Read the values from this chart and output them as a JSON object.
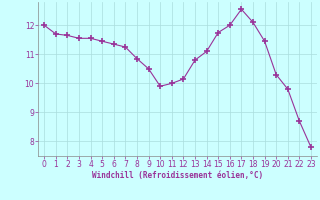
{
  "x": [
    0,
    1,
    2,
    3,
    4,
    5,
    6,
    7,
    8,
    9,
    10,
    11,
    12,
    13,
    14,
    15,
    16,
    17,
    18,
    19,
    20,
    21,
    22,
    23
  ],
  "y": [
    12.0,
    11.7,
    11.65,
    11.55,
    11.55,
    11.45,
    11.35,
    11.25,
    10.85,
    10.5,
    9.9,
    10.0,
    10.15,
    10.8,
    11.1,
    11.75,
    12.0,
    12.55,
    12.1,
    11.45,
    10.3,
    9.8,
    8.7,
    7.8
  ],
  "line_color": "#993399",
  "marker": "+",
  "marker_size": 4,
  "marker_lw": 1.2,
  "bg_color": "#ccffff",
  "grid_color": "#aadddd",
  "xlabel": "Windchill (Refroidissement éolien,°C)",
  "xlabel_color": "#993399",
  "tick_color": "#993399",
  "ylim": [
    7.5,
    12.8
  ],
  "xlim": [
    -0.5,
    23.5
  ],
  "yticks": [
    8,
    9,
    10,
    11,
    12
  ],
  "xticks": [
    0,
    1,
    2,
    3,
    4,
    5,
    6,
    7,
    8,
    9,
    10,
    11,
    12,
    13,
    14,
    15,
    16,
    17,
    18,
    19,
    20,
    21,
    22,
    23
  ],
  "tick_fontsize": 5.5,
  "xlabel_fontsize": 5.5
}
